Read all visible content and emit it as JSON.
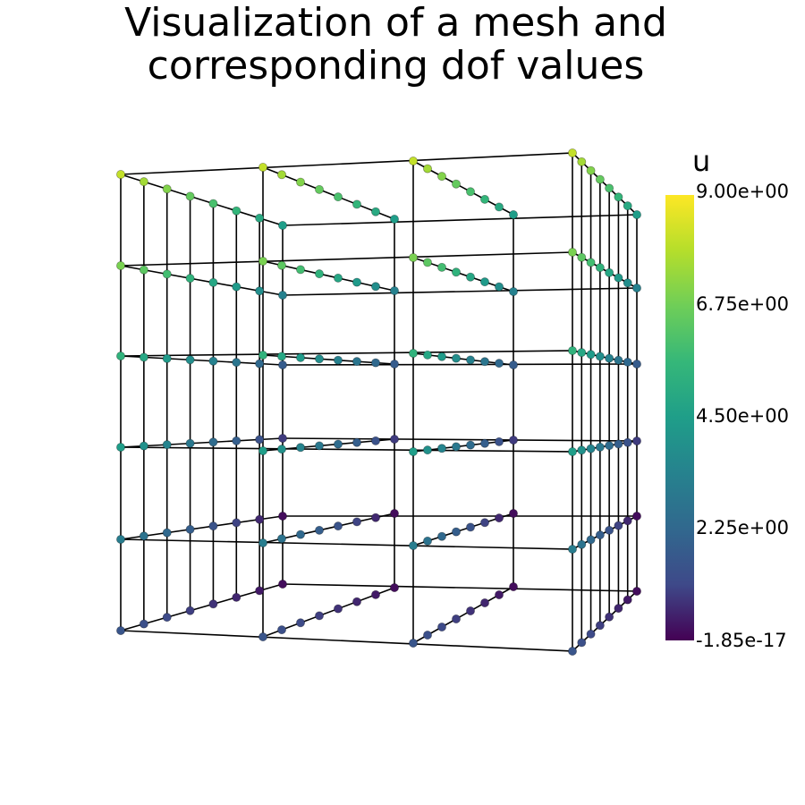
{
  "title_lines": [
    "Visualization of a mesh and",
    "corresponding dof values"
  ],
  "legend": {
    "title": "u",
    "ticks": [
      "9.00e+00",
      "6.75e+00",
      "4.50e+00",
      "2.25e+00",
      "-1.85e-17"
    ],
    "colormap": "viridis",
    "colors": [
      "#fde725",
      "#5ec962",
      "#21918c",
      "#3b528b",
      "#440154"
    ],
    "min": -1.85e-17,
    "max": 9.0
  },
  "mesh": {
    "type": "hexahedral grid",
    "layers": 6,
    "wireframe_color": "#000000",
    "dof_marker": "sphere"
  }
}
